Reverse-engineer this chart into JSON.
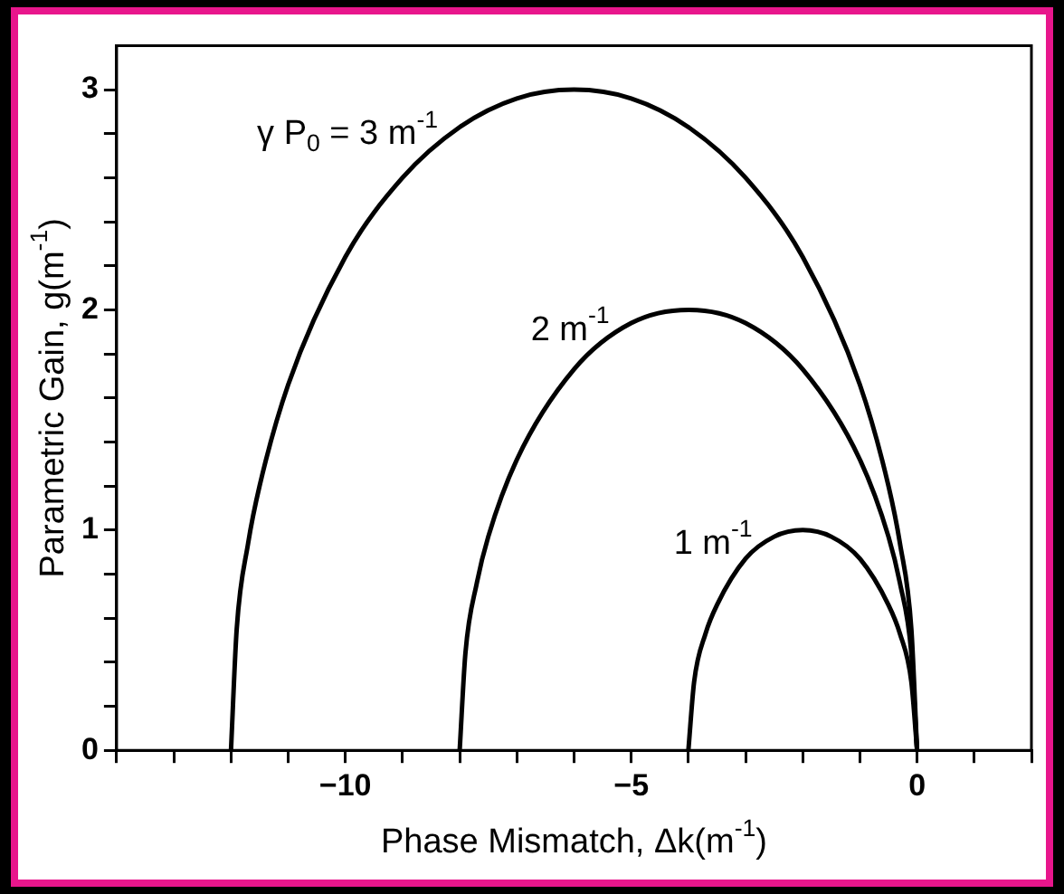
{
  "chart_data": {
    "type": "line",
    "xlabel": "Phase Mismatch, Δk(m$^{-1}$)",
    "ylabel": "Parametric Gain, g(m$^{-1}$)",
    "series": [
      {
        "name": "γ P$_{0}$ = 3 m$^{-1}$",
        "color": "#000000",
        "x": [
          -12,
          -11.9,
          -11.7,
          -11.5,
          -11,
          -10,
          -9,
          -8,
          -7,
          -6,
          -5,
          -4,
          -3,
          -2,
          -1,
          -0.5,
          -0.3,
          -0.1,
          0
        ],
        "values": [
          0,
          0.55,
          0.94,
          1.2,
          1.66,
          2.24,
          2.6,
          2.83,
          2.96,
          3,
          2.96,
          2.83,
          2.6,
          2.24,
          1.66,
          1.2,
          0.94,
          0.55,
          0
        ]
      },
      {
        "name": "2 m$^{-1}$",
        "color": "#000000",
        "x": [
          -8,
          -7.9,
          -7.7,
          -7.5,
          -7,
          -6,
          -5,
          -4,
          -3,
          -2,
          -1,
          -0.5,
          -0.3,
          -0.1,
          0
        ],
        "values": [
          0,
          0.44,
          0.76,
          0.97,
          1.32,
          1.73,
          1.94,
          2,
          1.94,
          1.73,
          1.32,
          0.97,
          0.76,
          0.44,
          0
        ]
      },
      {
        "name": "1 m$^{-1}$",
        "color": "#000000",
        "x": [
          -4,
          -3.9,
          -3.7,
          -3.5,
          -3,
          -2.5,
          -2,
          -1.5,
          -1,
          -0.5,
          -0.3,
          -0.1,
          0
        ],
        "values": [
          0,
          0.31,
          0.53,
          0.66,
          0.87,
          0.97,
          1,
          0.97,
          0.87,
          0.66,
          0.53,
          0.31,
          0
        ]
      }
    ],
    "xlim": [
      -14,
      2
    ],
    "xticks": [
      {
        "value": -14,
        "label": null
      },
      {
        "value": -13,
        "label": null
      },
      {
        "value": -12,
        "label": null
      },
      {
        "value": -11,
        "label": null
      },
      -10,
      {
        "value": -9,
        "label": null
      },
      {
        "value": -8,
        "label": null
      },
      {
        "value": -7,
        "label": null
      },
      {
        "value": -6,
        "label": null
      },
      -5,
      {
        "value": -4,
        "label": null
      },
      {
        "value": -3,
        "label": null
      },
      {
        "value": -2,
        "label": null
      },
      {
        "value": -1,
        "label": null
      },
      0,
      {
        "value": 1,
        "label": null
      },
      {
        "value": 2,
        "label": null
      }
    ],
    "ylim": [
      0,
      3.2
    ],
    "yticks": [
      0,
      {
        "value": 0.2,
        "label": null
      },
      {
        "value": 0.4,
        "label": null
      },
      {
        "value": 0.6,
        "label": null
      },
      {
        "value": 0.8,
        "label": null
      },
      1,
      {
        "value": 1.2,
        "label": null
      },
      {
        "value": 1.4,
        "label": null
      },
      {
        "value": 1.6,
        "label": null
      },
      {
        "value": 1.8,
        "label": null
      },
      2,
      {
        "value": 2.2,
        "label": null
      },
      {
        "value": 2.4,
        "label": null
      },
      {
        "value": 2.6,
        "label": null
      },
      {
        "value": 2.8,
        "label": null
      },
      3
    ],
    "grid": false,
    "legend": false,
    "marker": "none",
    "line_style": "solid"
  }
}
